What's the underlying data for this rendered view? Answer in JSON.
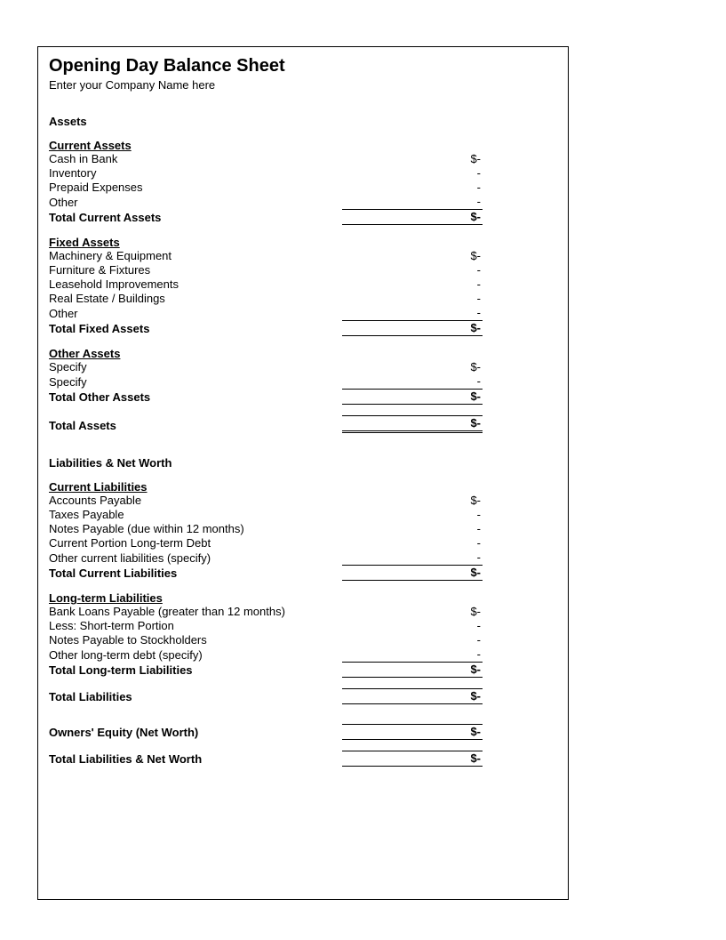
{
  "title": "Opening Day Balance Sheet",
  "subtitle": "Enter your Company Name here",
  "sections": {
    "assets": {
      "heading": "Assets",
      "current": {
        "heading": "Current Assets",
        "lines": {
          "cash": {
            "label": "Cash in Bank",
            "value": "$-"
          },
          "inventory": {
            "label": "Inventory",
            "value": "-"
          },
          "prepaid": {
            "label": "Prepaid Expenses",
            "value": "-"
          },
          "other": {
            "label": "Other",
            "value": "-"
          }
        },
        "total": {
          "label": "Total Current Assets",
          "value": "$-"
        }
      },
      "fixed": {
        "heading": "Fixed Assets",
        "lines": {
          "machinery": {
            "label": "Machinery & Equipment",
            "value": "$-"
          },
          "furniture": {
            "label": "Furniture & Fixtures",
            "value": "-"
          },
          "leasehold": {
            "label": "Leasehold Improvements",
            "value": "-"
          },
          "realestate": {
            "label": "Real Estate / Buildings",
            "value": "-"
          },
          "other": {
            "label": "Other",
            "value": "-"
          }
        },
        "total": {
          "label": "Total Fixed Assets",
          "value": "$-"
        }
      },
      "other": {
        "heading": "Other Assets",
        "lines": {
          "spec1": {
            "label": "Specify",
            "value": "$-"
          },
          "spec2": {
            "label": "Specify",
            "value": "-"
          }
        },
        "total": {
          "label": "Total Other Assets",
          "value": "$-"
        }
      },
      "total": {
        "label": "Total Assets",
        "value": "$-"
      }
    },
    "liabilities": {
      "heading": "Liabilities & Net Worth",
      "current": {
        "heading": "Current Liabilities",
        "lines": {
          "ap": {
            "label": "Accounts Payable",
            "value": "$-"
          },
          "taxes": {
            "label": "Taxes Payable",
            "value": "-"
          },
          "notes": {
            "label": "Notes Payable (due within 12 months)",
            "value": "-"
          },
          "ltcurrent": {
            "label": "Current Portion Long-term Debt",
            "value": "-"
          },
          "other": {
            "label": "Other current liabilities (specify)",
            "value": "-"
          }
        },
        "total": {
          "label": "Total Current Liabilities",
          "value": "$-"
        }
      },
      "longterm": {
        "heading": "Long-term Liabilities",
        "lines": {
          "bankloans": {
            "label": "Bank Loans Payable (greater than 12 months)",
            "value": "$-"
          },
          "less_st": {
            "label": "Less: Short-term Portion",
            "value": "-"
          },
          "notes_stock": {
            "label": "Notes Payable to Stockholders",
            "value": "-"
          },
          "other": {
            "label": "Other long-term debt (specify)",
            "value": "-"
          }
        },
        "total": {
          "label": "Total Long-term Liabilities",
          "value": "$-"
        }
      },
      "total": {
        "label": "Total Liabilities",
        "value": "$-"
      }
    },
    "equity": {
      "label": "Owners' Equity (Net Worth)",
      "value": "$-"
    },
    "total_lnw": {
      "label": "Total Liabilities & Net Worth",
      "value": "$-"
    }
  }
}
